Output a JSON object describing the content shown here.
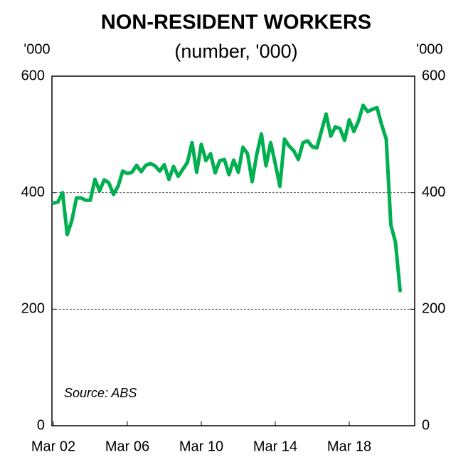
{
  "chart_data": {
    "type": "line",
    "title": "NON-RESIDENT WORKERS",
    "subtitle": "(number, '000)",
    "y_unit_left": "'000",
    "y_unit_right": "'000",
    "annotation": "Source: ABS",
    "categories": [
      "Mar 02",
      null,
      null,
      null,
      null,
      null,
      null,
      null,
      null,
      null,
      null,
      null,
      null,
      null,
      null,
      null,
      "Mar 06",
      null,
      null,
      null,
      null,
      null,
      null,
      null,
      null,
      null,
      null,
      null,
      null,
      null,
      null,
      null,
      "Mar 10",
      null,
      null,
      null,
      null,
      null,
      null,
      null,
      null,
      null,
      null,
      null,
      null,
      null,
      null,
      null,
      "Mar 14",
      null,
      null,
      null,
      null,
      null,
      null,
      null,
      null,
      null,
      null,
      null,
      null,
      null,
      null,
      null,
      "Mar 18",
      null,
      null,
      null,
      null,
      null,
      null,
      null,
      null,
      null,
      null,
      null
    ],
    "series": [
      {
        "name": "Non-resident workers",
        "color": "#00b050",
        "values": [
          382,
          384,
          400,
          328,
          352,
          391,
          391,
          387,
          387,
          423,
          403,
          422,
          417,
          397,
          411,
          437,
          433,
          435,
          447,
          436,
          447,
          450,
          446,
          437,
          448,
          423,
          445,
          428,
          440,
          452,
          486,
          435,
          483,
          455,
          467,
          434,
          455,
          457,
          431,
          456,
          435,
          478,
          467,
          419,
          466,
          501,
          446,
          486,
          450,
          411,
          492,
          480,
          472,
          457,
          486,
          489,
          479,
          477,
          506,
          535,
          497,
          513,
          510,
          490,
          525,
          505,
          523,
          550,
          539,
          543,
          546,
          517,
          492,
          345,
          315,
          232
        ]
      }
    ],
    "ylim": [
      0,
      600
    ],
    "yticks": [
      0,
      200,
      400,
      600
    ],
    "y2lim": [
      0,
      600
    ],
    "y2ticks": [
      0,
      200,
      400,
      600
    ],
    "grid": true
  }
}
